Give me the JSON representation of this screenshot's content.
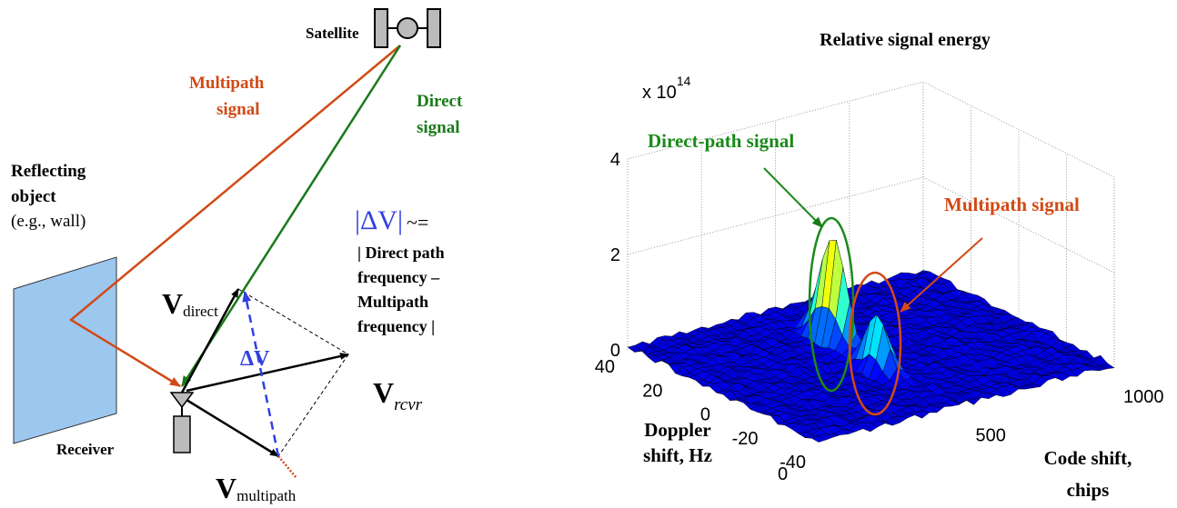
{
  "left": {
    "satellite_label": "Satellite",
    "multipath_label": [
      "Multipath",
      "signal"
    ],
    "direct_label": [
      "Direct",
      "signal"
    ],
    "reflecting_label": [
      "Reflecting",
      "object"
    ],
    "wall_note": "(e.g., wall)",
    "receiver_label": "Receiver",
    "v_direct": {
      "symbol": "V",
      "subscript": "direct"
    },
    "v_rcvr": {
      "symbol": "V",
      "subscript": "rcvr"
    },
    "v_multipath": {
      "symbol": "V",
      "subscript": "multipath"
    },
    "delta_v": "ΔV",
    "delta_v_eq": {
      "symbol": "|ΔV|",
      "approx": "~=",
      "lines": [
        "| Direct path",
        "frequency –",
        "Multipath",
        "frequency |"
      ]
    }
  },
  "right": {
    "title": "Relative signal energy",
    "z_multiplier": {
      "base": "x 10",
      "exponent": 14
    },
    "z_ticks": [
      0,
      2,
      4
    ],
    "doppler_ticks": [
      40,
      20,
      0,
      -20,
      -40
    ],
    "code_ticks": [
      0,
      500,
      1000
    ],
    "doppler_label": [
      "Doppler",
      "shift, Hz"
    ],
    "code_label": [
      "Code shift,",
      "chips"
    ],
    "direct_annotation": "Direct-path signal",
    "multipath_annotation": "Multipath signal"
  }
}
